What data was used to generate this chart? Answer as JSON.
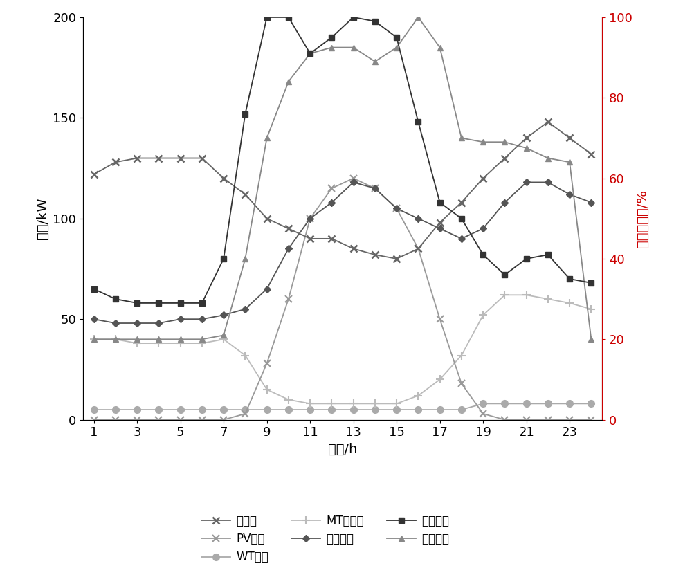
{
  "hours": [
    1,
    2,
    3,
    4,
    5,
    6,
    7,
    8,
    9,
    10,
    11,
    12,
    13,
    14,
    15,
    16,
    17,
    18,
    19,
    20,
    21,
    22,
    23,
    24
  ],
  "re_load": [
    122,
    128,
    130,
    130,
    130,
    130,
    120,
    112,
    100,
    95,
    90,
    90,
    85,
    82,
    80,
    85,
    98,
    108,
    120,
    130,
    140,
    148,
    140,
    132
  ],
  "pv_output": [
    0,
    0,
    0,
    0,
    0,
    0,
    0,
    3,
    28,
    60,
    100,
    115,
    120,
    115,
    105,
    85,
    50,
    18,
    3,
    0,
    0,
    0,
    0,
    0
  ],
  "wt_output": [
    5,
    5,
    5,
    5,
    5,
    5,
    5,
    5,
    5,
    5,
    5,
    5,
    5,
    5,
    5,
    5,
    5,
    5,
    8,
    8,
    8,
    8,
    8,
    8
  ],
  "mt_power": [
    40,
    40,
    38,
    38,
    38,
    38,
    40,
    32,
    15,
    10,
    8,
    8,
    8,
    8,
    8,
    12,
    20,
    32,
    52,
    62,
    62,
    60,
    58,
    55
  ],
  "res_load": [
    50,
    48,
    48,
    48,
    50,
    50,
    52,
    55,
    65,
    85,
    100,
    108,
    118,
    115,
    105,
    100,
    95,
    90,
    95,
    108,
    118,
    118,
    112,
    108
  ],
  "ind_load": [
    65,
    60,
    58,
    58,
    58,
    58,
    80,
    152,
    200,
    200,
    182,
    190,
    200,
    198,
    190,
    148,
    108,
    100,
    82,
    72,
    80,
    82,
    70,
    68
  ],
  "com_load": [
    40,
    40,
    40,
    40,
    40,
    40,
    42,
    80,
    140,
    168,
    182,
    185,
    185,
    178,
    185,
    200,
    185,
    140,
    138,
    138,
    135,
    130,
    128,
    40
  ],
  "ylim_left": [
    0,
    200
  ],
  "ylim_right": [
    0,
    100
  ],
  "xlabel": "时间/h",
  "ylabel_left": "功率/kW",
  "ylabel_right": "负荷百分比/%",
  "xticks": [
    1,
    3,
    5,
    7,
    9,
    11,
    13,
    15,
    17,
    19,
    21,
    23
  ],
  "yticks_left": [
    0,
    50,
    100,
    150,
    200
  ],
  "yticks_right": [
    0,
    20,
    40,
    60,
    80,
    100
  ],
  "legend_entries": [
    "热负荷",
    "PV出力",
    "WT出力",
    "MT电功率",
    "居民负荷",
    "工业负荷",
    "商业负荷"
  ],
  "colors": {
    "re_load": "#666666",
    "pv_output": "#999999",
    "wt_output": "#aaaaaa",
    "mt_power": "#bbbbbb",
    "res_load": "#555555",
    "ind_load": "#333333",
    "com_load": "#888888"
  },
  "background_color": "#ffffff",
  "right_axis_color": "#cc0000"
}
